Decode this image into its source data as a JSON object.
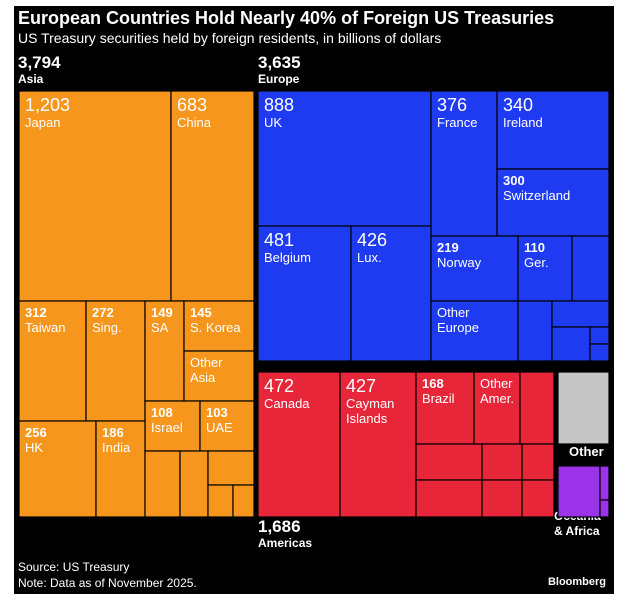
{
  "header": {
    "title": "European Countries Hold Nearly 40% of Foreign US Treasuries",
    "subtitle": "US Treasury securities held by foreign residents, in billions of dollars"
  },
  "footer": {
    "source": "Source: US Treasury",
    "note": "Note: Data as of November 2025.",
    "brand": "Bloomberg"
  },
  "colors": {
    "background": "#000000",
    "asia": "#f7961d",
    "europe": "#1f3bf2",
    "americas": "#e8263a",
    "other": "#c6c6c6",
    "oceania_africa": "#9b34e8"
  },
  "chart_data": {
    "type": "treemap",
    "title": "European Countries Hold Nearly 40% of Foreign US Treasuries",
    "subtitle": "US Treasury securities held by foreign residents, in billions of dollars",
    "units": "billions of dollars",
    "groups": [
      {
        "name": "Asia",
        "value": "3,794",
        "color": "#f7961d",
        "items": [
          {
            "label": "Japan",
            "value": "1,203"
          },
          {
            "label": "China",
            "value": "683"
          },
          {
            "label": "Taiwan",
            "value": "312"
          },
          {
            "label": "Sing.",
            "value": "272"
          },
          {
            "label": "SA",
            "value": "149"
          },
          {
            "label": "S. Korea",
            "value": "145"
          },
          {
            "label": "Other Asia",
            "value": ""
          },
          {
            "label": "Israel",
            "value": "108"
          },
          {
            "label": "UAE",
            "value": "103"
          },
          {
            "label": "HK",
            "value": "256"
          },
          {
            "label": "India",
            "value": "186"
          }
        ]
      },
      {
        "name": "Europe",
        "value": "3,635",
        "color": "#1f3bf2",
        "items": [
          {
            "label": "UK",
            "value": "888"
          },
          {
            "label": "France",
            "value": "376"
          },
          {
            "label": "Ireland",
            "value": "340"
          },
          {
            "label": "Switzerland",
            "value": "300"
          },
          {
            "label": "Belgium",
            "value": "481"
          },
          {
            "label": "Lux.",
            "value": "426"
          },
          {
            "label": "Norway",
            "value": "219"
          },
          {
            "label": "Ger.",
            "value": "110"
          },
          {
            "label": "Other Europe",
            "value": ""
          }
        ]
      },
      {
        "name": "Americas",
        "value": "1,686",
        "color": "#e8263a",
        "items": [
          {
            "label": "Canada",
            "value": "472"
          },
          {
            "label": "Cayman Islands",
            "value": "427"
          },
          {
            "label": "Brazil",
            "value": "168"
          },
          {
            "label": "Other Amer.",
            "value": ""
          }
        ]
      },
      {
        "name": "Other",
        "value": "",
        "color": "#c6c6c6",
        "items": []
      },
      {
        "name": "Oceania & Africa",
        "value": "",
        "color": "#9b34e8",
        "items": []
      }
    ]
  }
}
